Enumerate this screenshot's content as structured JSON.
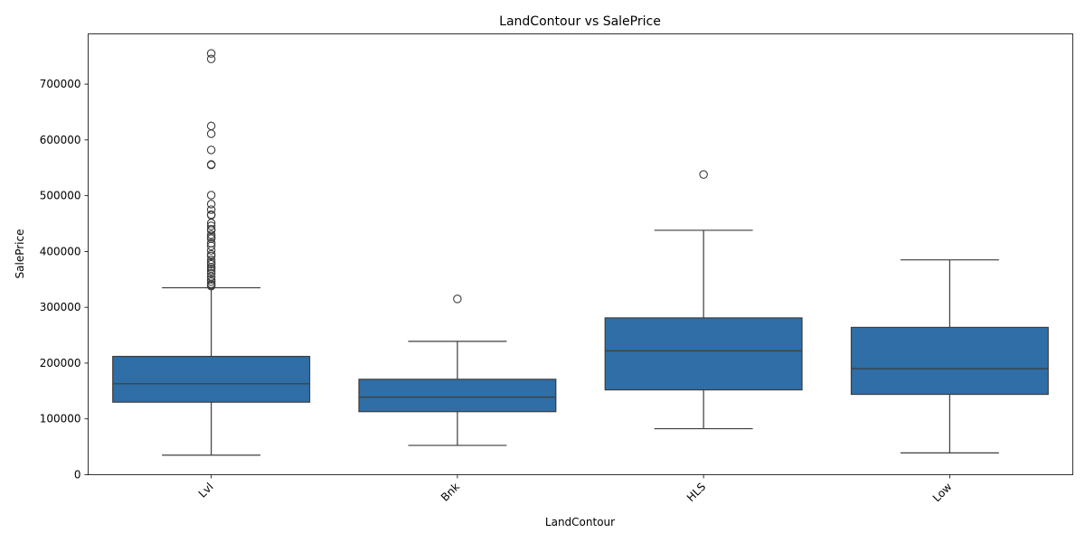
{
  "chart_data": {
    "type": "box",
    "title": "LandContour vs SalePrice",
    "xlabel": "LandContour",
    "ylabel": "SalePrice",
    "categories": [
      "Lvl",
      "Bnk",
      "HLS",
      "Low"
    ],
    "ylim": [
      0,
      790000
    ],
    "yticks": [
      0,
      100000,
      200000,
      300000,
      400000,
      500000,
      600000,
      700000
    ],
    "ytick_labels": [
      "0",
      "100000",
      "200000",
      "300000",
      "400000",
      "500000",
      "600000",
      "700000"
    ],
    "box_color": "#2f6ea6",
    "line_color": "#3d3d3d",
    "grid": false,
    "boxes": [
      {
        "category": "Lvl",
        "whisker_low": 35000,
        "q1": 130000,
        "median": 163000,
        "q3": 212000,
        "whisker_high": 335000,
        "outliers": [
          755000,
          745000,
          625000,
          611000,
          582000,
          556000,
          555000,
          501000,
          485000,
          475000,
          466000,
          465000,
          451000,
          446000,
          440000,
          438000,
          430000,
          426000,
          423000,
          415000,
          410000,
          402000,
          395000,
          392000,
          385000,
          380000,
          377000,
          372000,
          369000,
          365000,
          361000,
          355000,
          350000,
          346000,
          342000,
          340000,
          338000
        ]
      },
      {
        "category": "Bnk",
        "whisker_low": 52500,
        "q1": 113000,
        "median": 139000,
        "q3": 171000,
        "whisker_high": 239000,
        "outliers": [
          315000
        ]
      },
      {
        "category": "HLS",
        "whisker_low": 82500,
        "q1": 152000,
        "median": 222000,
        "q3": 281000,
        "whisker_high": 438000,
        "outliers": [
          538000
        ]
      },
      {
        "category": "Low",
        "whisker_low": 39000,
        "q1": 144000,
        "median": 190000,
        "q3": 264000,
        "whisker_high": 385000,
        "outliers": []
      }
    ]
  }
}
